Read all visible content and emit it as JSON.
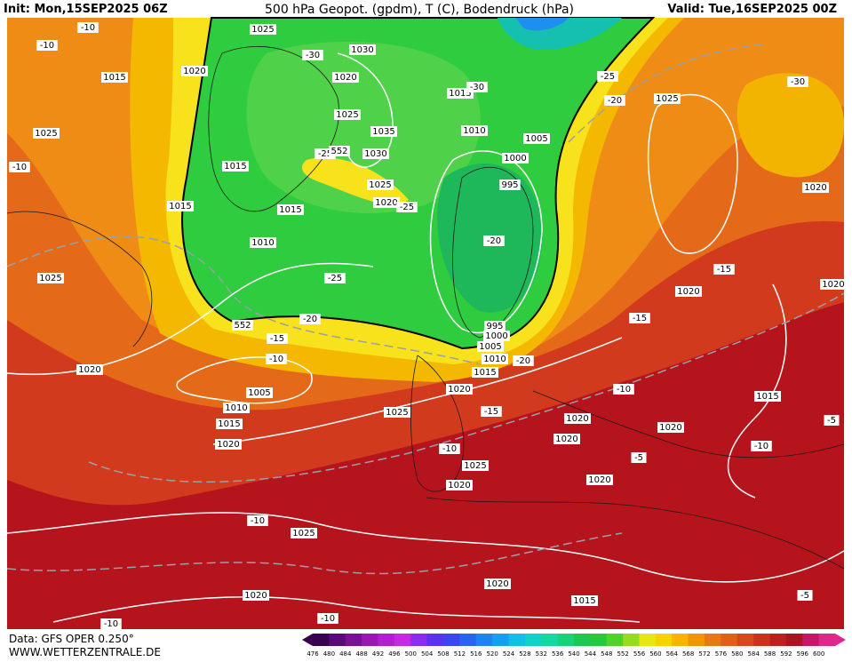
{
  "header": {
    "init": "Init: Mon,15SEP2025 06Z",
    "title": "500 hPa Geopot. (gpdm), T (C), Bodendruck (hPa)",
    "valid": "Valid: Tue,16SEP2025 00Z"
  },
  "footer": {
    "data": "Data: GFS OPER 0.250°",
    "site": "WWW.WETTERZENTRALE.DE"
  },
  "legend": {
    "labels": [
      476,
      480,
      484,
      488,
      492,
      496,
      500,
      504,
      508,
      512,
      516,
      520,
      524,
      528,
      532,
      536,
      540,
      544,
      548,
      552,
      556,
      560,
      564,
      568,
      572,
      576,
      580,
      584,
      588,
      592,
      596,
      600
    ]
  },
  "map_labels": [
    "1025",
    "1030",
    "-30",
    "-10",
    "-10",
    "1020",
    "1015",
    "1020",
    "1015",
    "-30",
    "-25",
    "-20",
    "1025",
    "-30",
    "1025",
    "1035",
    "1010",
    "1005",
    "1025",
    "-10",
    "1015",
    "-25",
    "1030",
    "1000",
    "1025",
    "995",
    "1020",
    "1020",
    "-25",
    "1015",
    "1015",
    "1010",
    "-20",
    "1025",
    "-25",
    "-15",
    "1020",
    "1020",
    "-20",
    "552",
    "995",
    "-15",
    "-15",
    "1000",
    "1005",
    "-10",
    "1010",
    "-20",
    "1015",
    "1020",
    "1020",
    "-10",
    "1005",
    "1015",
    "1010",
    "1025",
    "-15",
    "1020",
    "1015",
    "-5",
    "1020",
    "1020",
    "1020",
    "-10",
    "-10",
    "1025",
    "-5",
    "1020",
    "1020",
    "-10",
    "1025",
    "1020",
    "1020",
    "1015",
    "-5",
    "-10",
    "-10",
    "552"
  ]
}
